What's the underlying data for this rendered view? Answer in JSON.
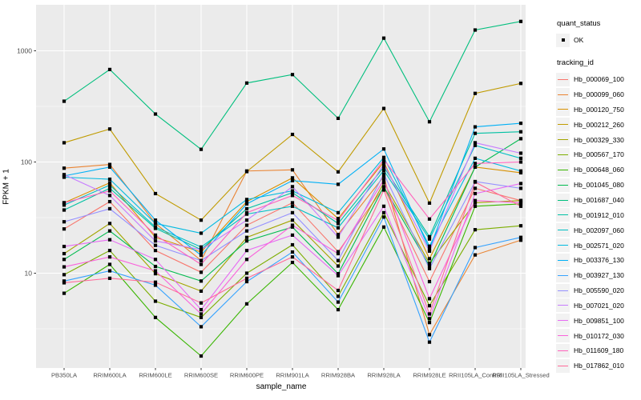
{
  "figure": {
    "background": "#FFFFFF",
    "panel_background": "#EBEBEB",
    "gridline_color": "#FFFFFF",
    "tick_label_color": "#4D4D4D",
    "point_color": "#000000"
  },
  "chart_data": {
    "type": "line",
    "title": "",
    "xlabel": "sample_name",
    "ylabel": "FPKM + 1",
    "y_scale": "log10",
    "y_ticks": [
      10,
      100,
      1000
    ],
    "y_tick_labels": [
      "10",
      "100",
      "1000"
    ],
    "ylim_log10": [
      0.17,
      3.34
    ],
    "grid": "major+minor white on gray panel",
    "legend_position": "right",
    "point_shape": "small black square on every data point",
    "categories": [
      "PB350LA",
      "RRIM600LA",
      "RRIM600LE",
      "RRIM600SE",
      "RRIM600PE",
      "RRIM901LA",
      "RRIM928BA",
      "RRIM928LA",
      "RRIM928LE",
      "RRII105LA_Control",
      "RRII105LA_Stressed"
    ],
    "legend": {
      "quant_status_title": "quant_status",
      "quant_status_items": [
        "OK"
      ],
      "tracking_id_title": "tracking_id"
    },
    "series": [
      {
        "name": "Hb_000069_100",
        "color": "#F8766D",
        "values": [
          25,
          44,
          16,
          10.2,
          27,
          43,
          15.6,
          59,
          8.4,
          58,
          45
        ]
      },
      {
        "name": "Hb_000099_060",
        "color": "#EA8331",
        "values": [
          88,
          95,
          28,
          13,
          83,
          85,
          22.3,
          74,
          2.8,
          14.6,
          19.8
        ]
      },
      {
        "name": "Hb_000120_750",
        "color": "#D89000",
        "values": [
          43,
          65,
          21,
          15.5,
          44,
          72,
          31,
          100,
          13.5,
          90,
          80
        ]
      },
      {
        "name": "Hb_000212_260",
        "color": "#C09B00",
        "values": [
          149,
          198,
          52,
          30,
          82,
          177,
          81.5,
          303,
          42.7,
          414,
          509
        ]
      },
      {
        "name": "Hb_000329_330",
        "color": "#A3A500",
        "values": [
          15,
          28,
          9.9,
          6.9,
          21,
          30,
          11.6,
          65,
          12.3,
          43,
          45
        ]
      },
      {
        "name": "Hb_000567_170",
        "color": "#7CAE00",
        "values": [
          9.7,
          16,
          5.6,
          4.0,
          10,
          18,
          6.2,
          35,
          5.1,
          24.6,
          26.7
        ]
      },
      {
        "name": "Hb_000648_060",
        "color": "#39B600",
        "values": [
          6.6,
          12,
          4.0,
          1.8,
          5.3,
          12.5,
          4.7,
          26,
          3.6,
          40,
          42
        ]
      },
      {
        "name": "Hb_001045_080",
        "color": "#00BB4E",
        "values": [
          13.3,
          24,
          11.5,
          8.5,
          19.5,
          26,
          9.9,
          60,
          11.6,
          90,
          162
        ]
      },
      {
        "name": "Hb_001687_040",
        "color": "#00BF7D",
        "values": [
          352,
          679,
          270,
          130,
          513,
          611,
          247,
          1300,
          230,
          1538,
          1837
        ]
      },
      {
        "name": "Hb_001912_010",
        "color": "#00C1A3",
        "values": [
          37,
          58,
          25.3,
          16.3,
          38,
          53,
          28,
          90,
          21.3,
          181,
          187
        ]
      },
      {
        "name": "Hb_002097_060",
        "color": "#00BFC4",
        "values": [
          41,
          62,
          26,
          17.2,
          34,
          40,
          25.6,
          84,
          20.3,
          141,
          108
        ]
      },
      {
        "name": "Hb_002571_020",
        "color": "#00BAE0",
        "values": [
          73,
          70,
          28,
          22.9,
          46,
          55,
          35,
          110,
          17.5,
          108,
          83
        ]
      },
      {
        "name": "Hb_003376_130",
        "color": "#00B0F6",
        "values": [
          75,
          90,
          30,
          14.5,
          42,
          68,
          63,
          131,
          16.4,
          207,
          223
        ]
      },
      {
        "name": "Hb_003927_130",
        "color": "#35A2FF",
        "values": [
          8.5,
          10.5,
          7.8,
          3.3,
          8.4,
          15.5,
          5.5,
          32,
          2.4,
          17,
          21
        ]
      },
      {
        "name": "Hb_005590_020",
        "color": "#9590FF",
        "values": [
          29,
          38,
          17.8,
          13,
          24,
          35,
          13,
          78,
          11,
          66.7,
          58
        ]
      },
      {
        "name": "Hb_007021_020",
        "color": "#C77CFF",
        "values": [
          77,
          50,
          19.5,
          16.3,
          30,
          60,
          21.1,
          96,
          15.8,
          149,
          120
        ]
      },
      {
        "name": "Hb_009851_100",
        "color": "#E76BF3",
        "values": [
          17.4,
          20,
          13.3,
          4.7,
          16,
          22,
          9.5,
          40,
          3.9,
          52,
          64
        ]
      },
      {
        "name": "Hb_010172_030",
        "color": "#FA62DB",
        "values": [
          11.4,
          14,
          10.5,
          4.3,
          13.3,
          27,
          15,
          69,
          5.9,
          45,
          43
        ]
      },
      {
        "name": "Hb_011609_180",
        "color": "#FF62BC",
        "values": [
          43,
          55,
          22,
          12,
          35,
          50,
          29.8,
          105,
          30.7,
          97,
          100
        ]
      },
      {
        "name": "Hb_017862_010",
        "color": "#FF6A98",
        "values": [
          8.2,
          9,
          8.3,
          5.4,
          9,
          14,
          7,
          56,
          4.3,
          66,
          40
        ]
      }
    ]
  }
}
